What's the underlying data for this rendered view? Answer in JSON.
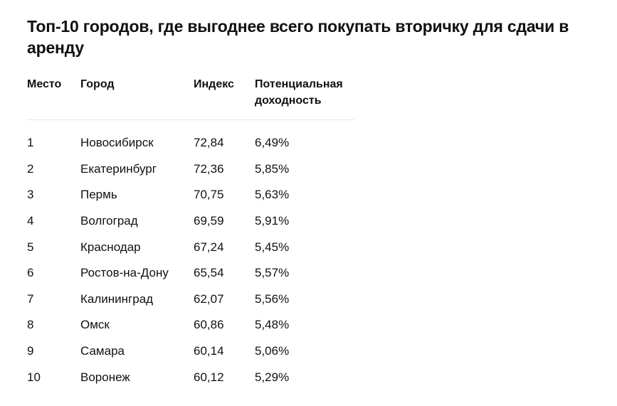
{
  "title": "Топ-10 городов, где выгоднее всего покупать вторичку для сдачи в аренду",
  "table": {
    "headers": [
      "Место",
      "Город",
      "Индекс",
      "Потенциальная доходность"
    ],
    "rows": [
      [
        "1",
        "Новосибирск",
        "72,84",
        "6,49%"
      ],
      [
        "2",
        "Екатеринбург",
        "72,36",
        "5,85%"
      ],
      [
        "3",
        "Пермь",
        "70,75",
        "5,63%"
      ],
      [
        "4",
        "Волгоград",
        "69,59",
        "5,91%"
      ],
      [
        "5",
        "Краснодар",
        "67,24",
        "5,45%"
      ],
      [
        "6",
        "Ростов-на-Дону",
        "65,54",
        "5,57%"
      ],
      [
        "7",
        "Калининград",
        "62,07",
        "5,56%"
      ],
      [
        "8",
        "Омск",
        "60,86",
        "5,48%"
      ],
      [
        "9",
        "Самара",
        "60,14",
        "5,06%"
      ],
      [
        "10",
        "Воронеж",
        "60,12",
        "5,29%"
      ]
    ]
  }
}
